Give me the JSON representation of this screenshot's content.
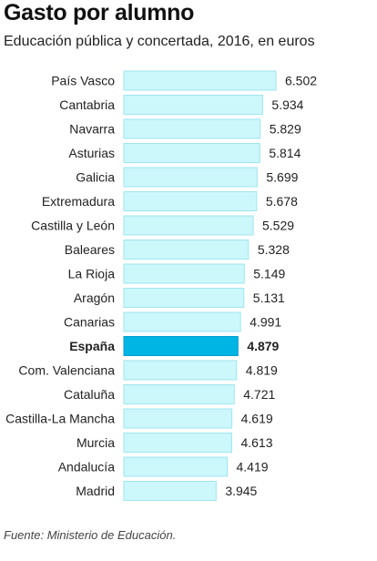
{
  "title": "Gasto por alumno",
  "subtitle": "Educación pública y concertada, 2016, en euros",
  "source": "Fuente: Ministerio de Educación.",
  "colors": {
    "bar_fill": "#ccf7fb",
    "bar_stroke": "#9ee6f0",
    "highlight_fill": "#00b4e4",
    "highlight_stroke": "#009fcc",
    "text": "#222222"
  },
  "chart_data": {
    "type": "bar",
    "orientation": "horizontal",
    "title": "Gasto por alumno",
    "subtitle": "Educación pública y concertada, 2016, en euros",
    "highlight": "España",
    "grid": false,
    "categories": [
      "País Vasco",
      "Cantabria",
      "Navarra",
      "Asturias",
      "Galicia",
      "Extremadura",
      "Castilla y León",
      "Baleares",
      "La Rioja",
      "Aragón",
      "Canarias",
      "España",
      "Com. Valenciana",
      "Cataluña",
      "Castilla-La Mancha",
      "Murcia",
      "Andalucía",
      "Madrid"
    ],
    "values": [
      6502,
      5934,
      5829,
      5814,
      5699,
      5678,
      5529,
      5328,
      5149,
      5131,
      4991,
      4879,
      4819,
      4721,
      4619,
      4613,
      4419,
      3945
    ],
    "value_labels": [
      "6.502",
      "5.934",
      "5.829",
      "5.814",
      "5.699",
      "5.678",
      "5.529",
      "5.328",
      "5.149",
      "5.131",
      "4.991",
      "4.879",
      "4.819",
      "4.721",
      "4.619",
      "4.613",
      "4.419",
      "3.945"
    ],
    "xlim": [
      0,
      6502
    ]
  }
}
